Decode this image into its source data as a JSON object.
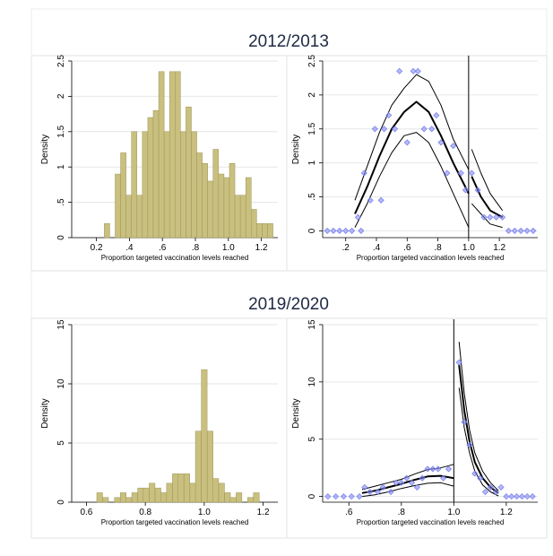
{
  "colors": {
    "bar_fill": "#c9c07f",
    "bar_stroke": "#9d955a",
    "marker": "#7b83ee",
    "curve": "#000000",
    "grid": "#e6e6e6",
    "panel_border": "#e3e3e3"
  },
  "groups": [
    {
      "title": "2012/2013",
      "panels": [
        {
          "type": "bar",
          "xlabel": "Proportion targeted vaccination levels reached",
          "ylabel": "Density",
          "xlim": [
            0.05,
            1.3
          ],
          "ylim": [
            0,
            2.5
          ],
          "xticks": [
            0.2,
            0.4,
            0.6,
            0.8,
            1.0,
            1.2
          ],
          "xtick_labels": [
            "0.2",
            ".4",
            ".6",
            ".8",
            "1.0",
            "1.2"
          ],
          "yticks": [
            0,
            0.5,
            1,
            1.5,
            2,
            2.5
          ],
          "ytick_labels": [
            "0",
            ".5",
            "1",
            "1.5",
            "2",
            "2.5"
          ],
          "bin_width": 0.033,
          "x": [
            0.264,
            0.297,
            0.33,
            0.363,
            0.396,
            0.429,
            0.462,
            0.495,
            0.528,
            0.561,
            0.594,
            0.627,
            0.66,
            0.693,
            0.726,
            0.759,
            0.792,
            0.825,
            0.858,
            0.891,
            0.924,
            0.957,
            0.99,
            1.023,
            1.056,
            1.089,
            1.122,
            1.155,
            1.188,
            1.221,
            1.254
          ],
          "values": [
            0.2,
            0.0,
            0.9,
            1.2,
            0.6,
            1.5,
            0.6,
            1.5,
            1.7,
            1.8,
            2.35,
            1.5,
            2.35,
            2.35,
            1.5,
            1.85,
            1.5,
            1.2,
            1.05,
            0.8,
            1.25,
            0.9,
            0.85,
            1.05,
            0.6,
            0.6,
            0.85,
            0.4,
            0.2,
            0.2,
            0.2
          ]
        },
        {
          "type": "scatter",
          "xlabel": "Proportion targeted vaccination levels reached",
          "ylabel": "Density",
          "xlim": [
            0.05,
            1.45
          ],
          "ylim": [
            -0.1,
            2.5
          ],
          "xticks": [
            0.2,
            0.4,
            0.6,
            0.8,
            1.0,
            1.2
          ],
          "xtick_labels": [
            ".2",
            ".4",
            ".6",
            ".8",
            "1.0",
            "1.2"
          ],
          "yticks": [
            0,
            0.5,
            1,
            1.5,
            2,
            2.5
          ],
          "ytick_labels": [
            "0",
            ".5",
            "1",
            "1.5",
            "2",
            "2.5"
          ],
          "cutoff": 1.0,
          "points": [
            [
              0.08,
              0
            ],
            [
              0.12,
              0
            ],
            [
              0.16,
              0
            ],
            [
              0.2,
              0
            ],
            [
              0.24,
              0
            ],
            [
              0.28,
              0.2
            ],
            [
              0.3,
              0
            ],
            [
              0.32,
              0.85
            ],
            [
              0.36,
              0.45
            ],
            [
              0.39,
              1.5
            ],
            [
              0.43,
              0.45
            ],
            [
              0.45,
              1.5
            ],
            [
              0.48,
              1.7
            ],
            [
              0.52,
              1.5
            ],
            [
              0.55,
              2.35
            ],
            [
              0.6,
              1.3
            ],
            [
              0.64,
              2.35
            ],
            [
              0.67,
              2.35
            ],
            [
              0.71,
              1.5
            ],
            [
              0.76,
              1.5
            ],
            [
              0.79,
              1.7
            ],
            [
              0.82,
              1.3
            ],
            [
              0.86,
              0.85
            ],
            [
              0.9,
              1.25
            ],
            [
              0.95,
              0.85
            ],
            [
              0.98,
              0.6
            ],
            [
              1.02,
              0.85
            ],
            [
              1.06,
              0.6
            ],
            [
              1.1,
              0.2
            ],
            [
              1.14,
              0.2
            ],
            [
              1.18,
              0.2
            ],
            [
              1.22,
              0.2
            ],
            [
              1.26,
              0
            ],
            [
              1.3,
              0
            ],
            [
              1.34,
              0
            ],
            [
              1.38,
              0
            ],
            [
              1.42,
              0
            ]
          ],
          "left_fit": [
            [
              0.26,
              0.25
            ],
            [
              0.34,
              0.65
            ],
            [
              0.42,
              1.1
            ],
            [
              0.5,
              1.5
            ],
            [
              0.58,
              1.75
            ],
            [
              0.66,
              1.9
            ],
            [
              0.74,
              1.75
            ],
            [
              0.82,
              1.4
            ],
            [
              0.9,
              1.0
            ],
            [
              1.0,
              0.55
            ]
          ],
          "left_lo": [
            [
              0.26,
              0.05
            ],
            [
              0.34,
              0.4
            ],
            [
              0.42,
              0.8
            ],
            [
              0.5,
              1.15
            ],
            [
              0.58,
              1.4
            ],
            [
              0.66,
              1.45
            ],
            [
              0.74,
              1.3
            ],
            [
              0.82,
              0.95
            ],
            [
              0.9,
              0.55
            ],
            [
              1.0,
              0.05
            ]
          ],
          "left_hi": [
            [
              0.26,
              0.45
            ],
            [
              0.34,
              0.95
            ],
            [
              0.42,
              1.45
            ],
            [
              0.5,
              1.85
            ],
            [
              0.58,
              2.1
            ],
            [
              0.66,
              2.3
            ],
            [
              0.74,
              2.2
            ],
            [
              0.82,
              1.85
            ],
            [
              0.9,
              1.35
            ],
            [
              1.0,
              0.9
            ]
          ],
          "right_fit": [
            [
              1.02,
              0.8
            ],
            [
              1.08,
              0.5
            ],
            [
              1.14,
              0.3
            ],
            [
              1.22,
              0.2
            ]
          ],
          "right_lo": [
            [
              1.02,
              0.4
            ],
            [
              1.08,
              0.25
            ],
            [
              1.14,
              0.1
            ],
            [
              1.22,
              0.05
            ]
          ],
          "right_hi": [
            [
              1.02,
              1.2
            ],
            [
              1.08,
              0.85
            ],
            [
              1.14,
              0.55
            ],
            [
              1.22,
              0.3
            ]
          ]
        }
      ]
    },
    {
      "title": "2019/2020",
      "panels": [
        {
          "type": "bar",
          "xlabel": "Proportion targeted vaccination levels reached",
          "ylabel": "Density",
          "xlim": [
            0.55,
            1.25
          ],
          "ylim": [
            0,
            15
          ],
          "xticks": [
            0.6,
            0.8,
            1.0,
            1.2
          ],
          "xtick_labels": [
            "0.6",
            "0.8",
            "1.0",
            "1.2"
          ],
          "yticks": [
            0,
            5,
            10,
            15
          ],
          "ytick_labels": [
            "0",
            "5",
            "10",
            "15"
          ],
          "bin_width": 0.0197,
          "x": [
            0.645,
            0.665,
            0.685,
            0.705,
            0.725,
            0.744,
            0.764,
            0.784,
            0.803,
            0.823,
            0.843,
            0.862,
            0.882,
            0.902,
            0.921,
            0.941,
            0.961,
            0.98,
            1.0,
            1.02,
            1.039,
            1.059,
            1.079,
            1.098,
            1.118,
            1.138,
            1.157,
            1.177
          ],
          "values": [
            0.8,
            0.4,
            0.0,
            0.4,
            0.8,
            0.4,
            0.8,
            1.2,
            1.2,
            1.6,
            1.2,
            0.8,
            1.6,
            2.4,
            2.4,
            2.4,
            1.6,
            6.0,
            11.2,
            6.0,
            2.0,
            1.6,
            0.8,
            0.4,
            0.8,
            0.0,
            0.4,
            0.8
          ]
        },
        {
          "type": "scatter",
          "xlabel": "Proportion targeted vaccination levels reached",
          "ylabel": "Density",
          "xlim": [
            0.5,
            1.32
          ],
          "ylim": [
            -0.5,
            15
          ],
          "xticks": [
            0.6,
            0.8,
            1.0,
            1.2
          ],
          "xtick_labels": [
            ".6",
            ".8",
            "1.0",
            "1.2"
          ],
          "yticks": [
            0,
            5,
            10,
            15
          ],
          "ytick_labels": [
            "0",
            "5",
            "10",
            "15"
          ],
          "cutoff": 1.0,
          "points": [
            [
              0.52,
              0
            ],
            [
              0.55,
              0
            ],
            [
              0.58,
              0
            ],
            [
              0.61,
              0
            ],
            [
              0.64,
              0
            ],
            [
              0.66,
              0.8
            ],
            [
              0.68,
              0.4
            ],
            [
              0.71,
              0.4
            ],
            [
              0.73,
              0.8
            ],
            [
              0.76,
              0.4
            ],
            [
              0.78,
              1.2
            ],
            [
              0.8,
              1.2
            ],
            [
              0.82,
              1.6
            ],
            [
              0.84,
              1.2
            ],
            [
              0.86,
              0.8
            ],
            [
              0.88,
              1.6
            ],
            [
              0.9,
              2.4
            ],
            [
              0.92,
              2.4
            ],
            [
              0.94,
              2.4
            ],
            [
              0.96,
              1.6
            ],
            [
              0.98,
              2.4
            ],
            [
              1.02,
              11.7
            ],
            [
              1.04,
              6.5
            ],
            [
              1.06,
              4.5
            ],
            [
              1.08,
              2.0
            ],
            [
              1.1,
              1.6
            ],
            [
              1.12,
              0.4
            ],
            [
              1.14,
              0.8
            ],
            [
              1.16,
              0.4
            ],
            [
              1.18,
              0.8
            ],
            [
              1.2,
              0
            ],
            [
              1.22,
              0
            ],
            [
              1.24,
              0
            ],
            [
              1.26,
              0
            ],
            [
              1.28,
              0
            ],
            [
              1.3,
              0
            ]
          ],
          "left_fit": [
            [
              0.65,
              0.3
            ],
            [
              0.7,
              0.5
            ],
            [
              0.75,
              0.8
            ],
            [
              0.8,
              1.1
            ],
            [
              0.85,
              1.45
            ],
            [
              0.9,
              1.75
            ],
            [
              0.95,
              1.8
            ],
            [
              1.0,
              1.6
            ]
          ],
          "left_lo": [
            [
              0.65,
              0.0
            ],
            [
              0.7,
              0.15
            ],
            [
              0.75,
              0.4
            ],
            [
              0.8,
              0.7
            ],
            [
              0.85,
              0.95
            ],
            [
              0.9,
              1.15
            ],
            [
              0.95,
              1.2
            ],
            [
              1.0,
              0.9
            ]
          ],
          "left_hi": [
            [
              0.65,
              0.6
            ],
            [
              0.7,
              0.9
            ],
            [
              0.75,
              1.2
            ],
            [
              0.8,
              1.5
            ],
            [
              0.85,
              1.95
            ],
            [
              0.9,
              2.35
            ],
            [
              0.95,
              2.5
            ],
            [
              1.0,
              2.8
            ]
          ],
          "right_fit": [
            [
              1.02,
              11.5
            ],
            [
              1.04,
              7.5
            ],
            [
              1.06,
              4.8
            ],
            [
              1.08,
              3.0
            ],
            [
              1.11,
              1.6
            ],
            [
              1.14,
              0.8
            ],
            [
              1.17,
              0.3
            ]
          ],
          "right_lo": [
            [
              1.02,
              9.5
            ],
            [
              1.04,
              6.0
            ],
            [
              1.06,
              3.8
            ],
            [
              1.08,
              2.2
            ],
            [
              1.11,
              1.0
            ],
            [
              1.14,
              0.4
            ],
            [
              1.17,
              0.05
            ]
          ],
          "right_hi": [
            [
              1.02,
              13.5
            ],
            [
              1.04,
              9.0
            ],
            [
              1.06,
              5.8
            ],
            [
              1.08,
              3.8
            ],
            [
              1.11,
              2.2
            ],
            [
              1.14,
              1.2
            ],
            [
              1.17,
              0.5
            ]
          ]
        }
      ]
    }
  ]
}
